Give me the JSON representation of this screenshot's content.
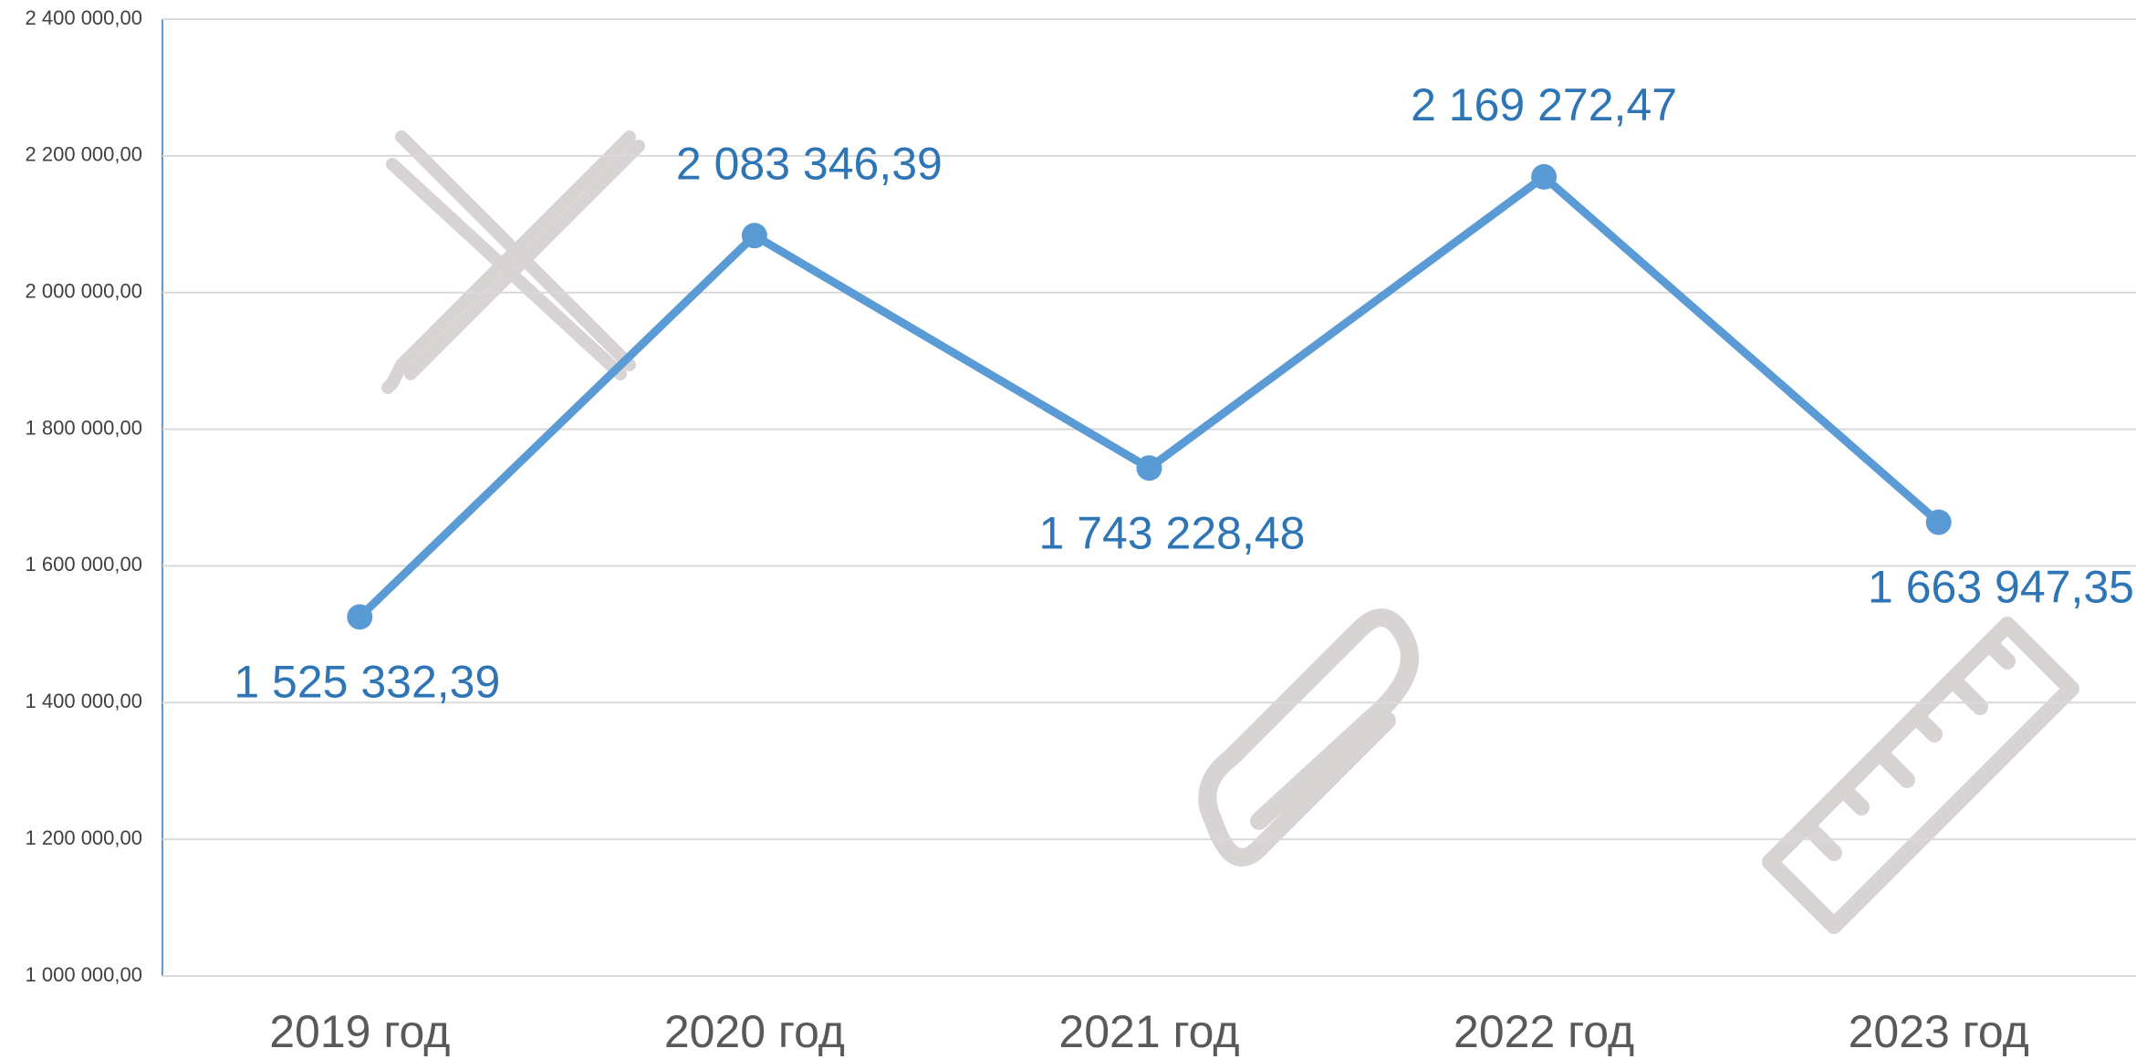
{
  "chart_data": {
    "type": "line",
    "categories": [
      "2019 год",
      "2020 год",
      "2021 год",
      "2022 год",
      "2023 год"
    ],
    "series": [
      {
        "name": null,
        "color": "#5b9bd5",
        "values": [
          1525332.39,
          2083346.39,
          1743228.48,
          2169272.47,
          1663947.35
        ],
        "value_labels": [
          "1 525 332,39",
          "2 083 346,39",
          "1 743 228,48",
          "2 169 272,47",
          "1 663 947,35"
        ]
      }
    ],
    "ylim": [
      1000000,
      2400000
    ],
    "yticks": [
      {
        "value": 1000000,
        "label": "1 000 000,00"
      },
      {
        "value": 1200000,
        "label": "1 200 000,00"
      },
      {
        "value": 1400000,
        "label": "1 400 000,00"
      },
      {
        "value": 1600000,
        "label": "1 600 000,00"
      },
      {
        "value": 1800000,
        "label": "1 800 000,00"
      },
      {
        "value": 2000000,
        "label": "2 000 000,00"
      },
      {
        "value": 2200000,
        "label": "2 200 000,00"
      },
      {
        "value": 2400000,
        "label": "2 400 000,00"
      }
    ],
    "grid": true
  }
}
